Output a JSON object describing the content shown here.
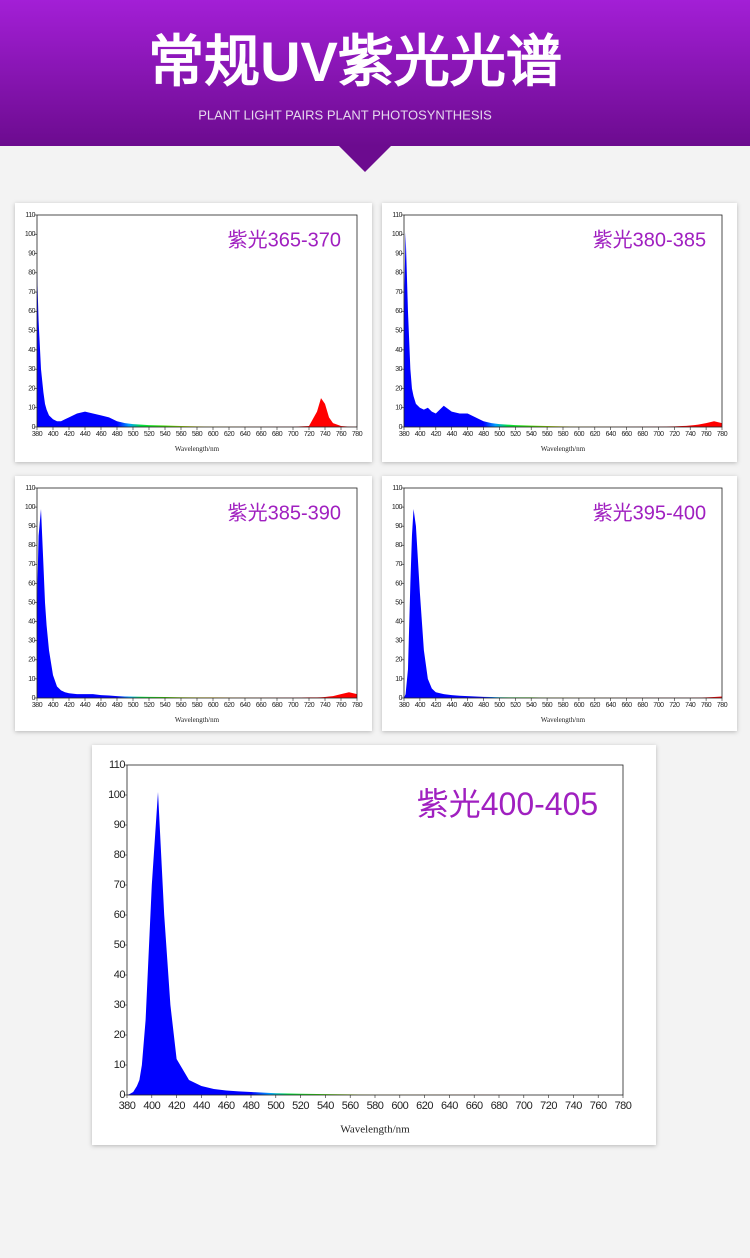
{
  "header": {
    "title": "常规UV紫光光谱",
    "subtitle": "PLANT LIGHT PAIRS  PLANT PHOTOSYNTHESIS"
  },
  "chart_data": [
    {
      "type": "area",
      "title": "紫光365-370",
      "xlabel": "Wavelength/nm",
      "color": "#0000ff",
      "x": [
        380,
        382,
        385,
        388,
        390,
        392,
        395,
        400,
        405,
        410,
        415,
        420,
        430,
        440,
        450,
        460,
        470,
        480,
        490,
        500,
        520,
        540,
        560,
        580,
        600,
        650,
        700,
        720,
        730,
        735,
        740,
        745,
        750,
        760,
        770,
        780
      ],
      "values": [
        82,
        55,
        30,
        18,
        12,
        9,
        6,
        4,
        3,
        3,
        4,
        5,
        7,
        8,
        7,
        6,
        5,
        3,
        2,
        1.5,
        1,
        0.8,
        0.5,
        0.3,
        0.2,
        0.1,
        0.1,
        0.5,
        8,
        15,
        12,
        5,
        2,
        0.5,
        0.2,
        0.1
      ],
      "xlim": [
        380,
        780
      ],
      "ylim": [
        0,
        110
      ],
      "xticks": [
        380,
        400,
        420,
        440,
        460,
        480,
        500,
        520,
        540,
        560,
        580,
        600,
        620,
        640,
        660,
        680,
        700,
        720,
        740,
        760,
        780
      ],
      "yticks": [
        0,
        10,
        20,
        30,
        40,
        50,
        60,
        70,
        80,
        90,
        100,
        110
      ]
    },
    {
      "type": "area",
      "title": "紫光380-385",
      "xlabel": "Wavelength/nm",
      "color": "#0000ff",
      "x": [
        380,
        382,
        385,
        388,
        390,
        392,
        395,
        400,
        405,
        410,
        415,
        420,
        430,
        440,
        450,
        460,
        470,
        480,
        490,
        500,
        520,
        540,
        560,
        580,
        600,
        650,
        700,
        720,
        730,
        735,
        740,
        745,
        750,
        760,
        770,
        780
      ],
      "values": [
        60,
        101,
        60,
        30,
        20,
        16,
        12,
        10,
        9,
        10,
        8,
        7,
        11,
        8,
        7,
        7,
        5,
        3,
        2,
        1.5,
        1,
        0.7,
        0.5,
        0.3,
        0.2,
        0.1,
        0.2,
        0.3,
        0.5,
        0.6,
        0.8,
        1,
        1.2,
        2,
        3,
        2
      ],
      "xlim": [
        380,
        780
      ],
      "ylim": [
        0,
        110
      ],
      "xticks": [
        380,
        400,
        420,
        440,
        460,
        480,
        500,
        520,
        540,
        560,
        580,
        600,
        620,
        640,
        660,
        680,
        700,
        720,
        740,
        760,
        780
      ],
      "yticks": [
        0,
        10,
        20,
        30,
        40,
        50,
        60,
        70,
        80,
        90,
        100,
        110
      ]
    },
    {
      "type": "area",
      "title": "紫光385-390",
      "xlabel": "Wavelength/nm",
      "color": "#0000ff",
      "x": [
        380,
        382,
        385,
        388,
        390,
        392,
        395,
        400,
        405,
        410,
        415,
        420,
        430,
        440,
        450,
        460,
        470,
        480,
        490,
        500,
        520,
        540,
        560,
        580,
        600,
        650,
        700,
        720,
        730,
        735,
        740,
        745,
        750,
        760,
        770,
        780
      ],
      "values": [
        50,
        85,
        99,
        70,
        50,
        38,
        25,
        12,
        6,
        4,
        3,
        2.5,
        2,
        2,
        2,
        1.5,
        1.3,
        1,
        0.8,
        0.7,
        0.6,
        0.5,
        0.4,
        0.3,
        0.3,
        0.2,
        0.2,
        0.3,
        0.3,
        0.4,
        0.5,
        0.8,
        1,
        2,
        3,
        2
      ],
      "xlim": [
        380,
        780
      ],
      "ylim": [
        0,
        110
      ],
      "xticks": [
        380,
        400,
        420,
        440,
        460,
        480,
        500,
        520,
        540,
        560,
        580,
        600,
        620,
        640,
        660,
        680,
        700,
        720,
        740,
        760,
        780
      ],
      "yticks": [
        0,
        10,
        20,
        30,
        40,
        50,
        60,
        70,
        80,
        90,
        100,
        110
      ]
    },
    {
      "type": "area",
      "title": "紫光395-400",
      "xlabel": "Wavelength/nm",
      "color": "#0000ff",
      "x": [
        380,
        382,
        385,
        388,
        390,
        392,
        395,
        400,
        405,
        410,
        415,
        420,
        430,
        440,
        450,
        460,
        470,
        480,
        490,
        500,
        520,
        540,
        560,
        580,
        600,
        650,
        700,
        720,
        730,
        735,
        740,
        745,
        750,
        760,
        770,
        780
      ],
      "values": [
        0,
        2,
        15,
        60,
        85,
        99,
        90,
        55,
        25,
        10,
        5,
        3,
        2,
        1.5,
        1.2,
        1,
        0.8,
        0.6,
        0.5,
        0.4,
        0.3,
        0.3,
        0.2,
        0.2,
        0.1,
        0.1,
        0.1,
        0.1,
        0.1,
        0.1,
        0.1,
        0.2,
        0.2,
        0.3,
        0.5,
        0.8
      ],
      "xlim": [
        380,
        780
      ],
      "ylim": [
        0,
        110
      ],
      "xticks": [
        380,
        400,
        420,
        440,
        460,
        480,
        500,
        520,
        540,
        560,
        580,
        600,
        620,
        640,
        660,
        680,
        700,
        720,
        740,
        760,
        780
      ],
      "yticks": [
        0,
        10,
        20,
        30,
        40,
        50,
        60,
        70,
        80,
        90,
        100,
        110
      ]
    },
    {
      "type": "area",
      "title": "紫光400-405",
      "xlabel": "Wavelength/nm",
      "color": "#0000ff",
      "x": [
        380,
        382,
        385,
        388,
        390,
        392,
        395,
        400,
        405,
        410,
        415,
        420,
        430,
        440,
        450,
        460,
        470,
        480,
        490,
        500,
        520,
        540,
        560,
        580,
        600,
        650,
        700,
        720,
        730,
        735,
        740,
        745,
        750,
        760,
        770,
        780
      ],
      "values": [
        0,
        0.3,
        1,
        3,
        5,
        10,
        25,
        70,
        101,
        60,
        30,
        12,
        5,
        3,
        2,
        1.5,
        1.2,
        1,
        0.8,
        0.6,
        0.4,
        0.3,
        0.2,
        0.1,
        0.1,
        0.1,
        0,
        0,
        0,
        0,
        0,
        0,
        0,
        0,
        0,
        0
      ],
      "xlim": [
        380,
        780
      ],
      "ylim": [
        0,
        110
      ],
      "xticks": [
        380,
        400,
        420,
        440,
        460,
        480,
        500,
        520,
        540,
        560,
        580,
        600,
        620,
        640,
        660,
        680,
        700,
        720,
        740,
        760,
        780
      ],
      "yticks": [
        0,
        10,
        20,
        30,
        40,
        50,
        60,
        70,
        80,
        90,
        100,
        110
      ]
    }
  ]
}
